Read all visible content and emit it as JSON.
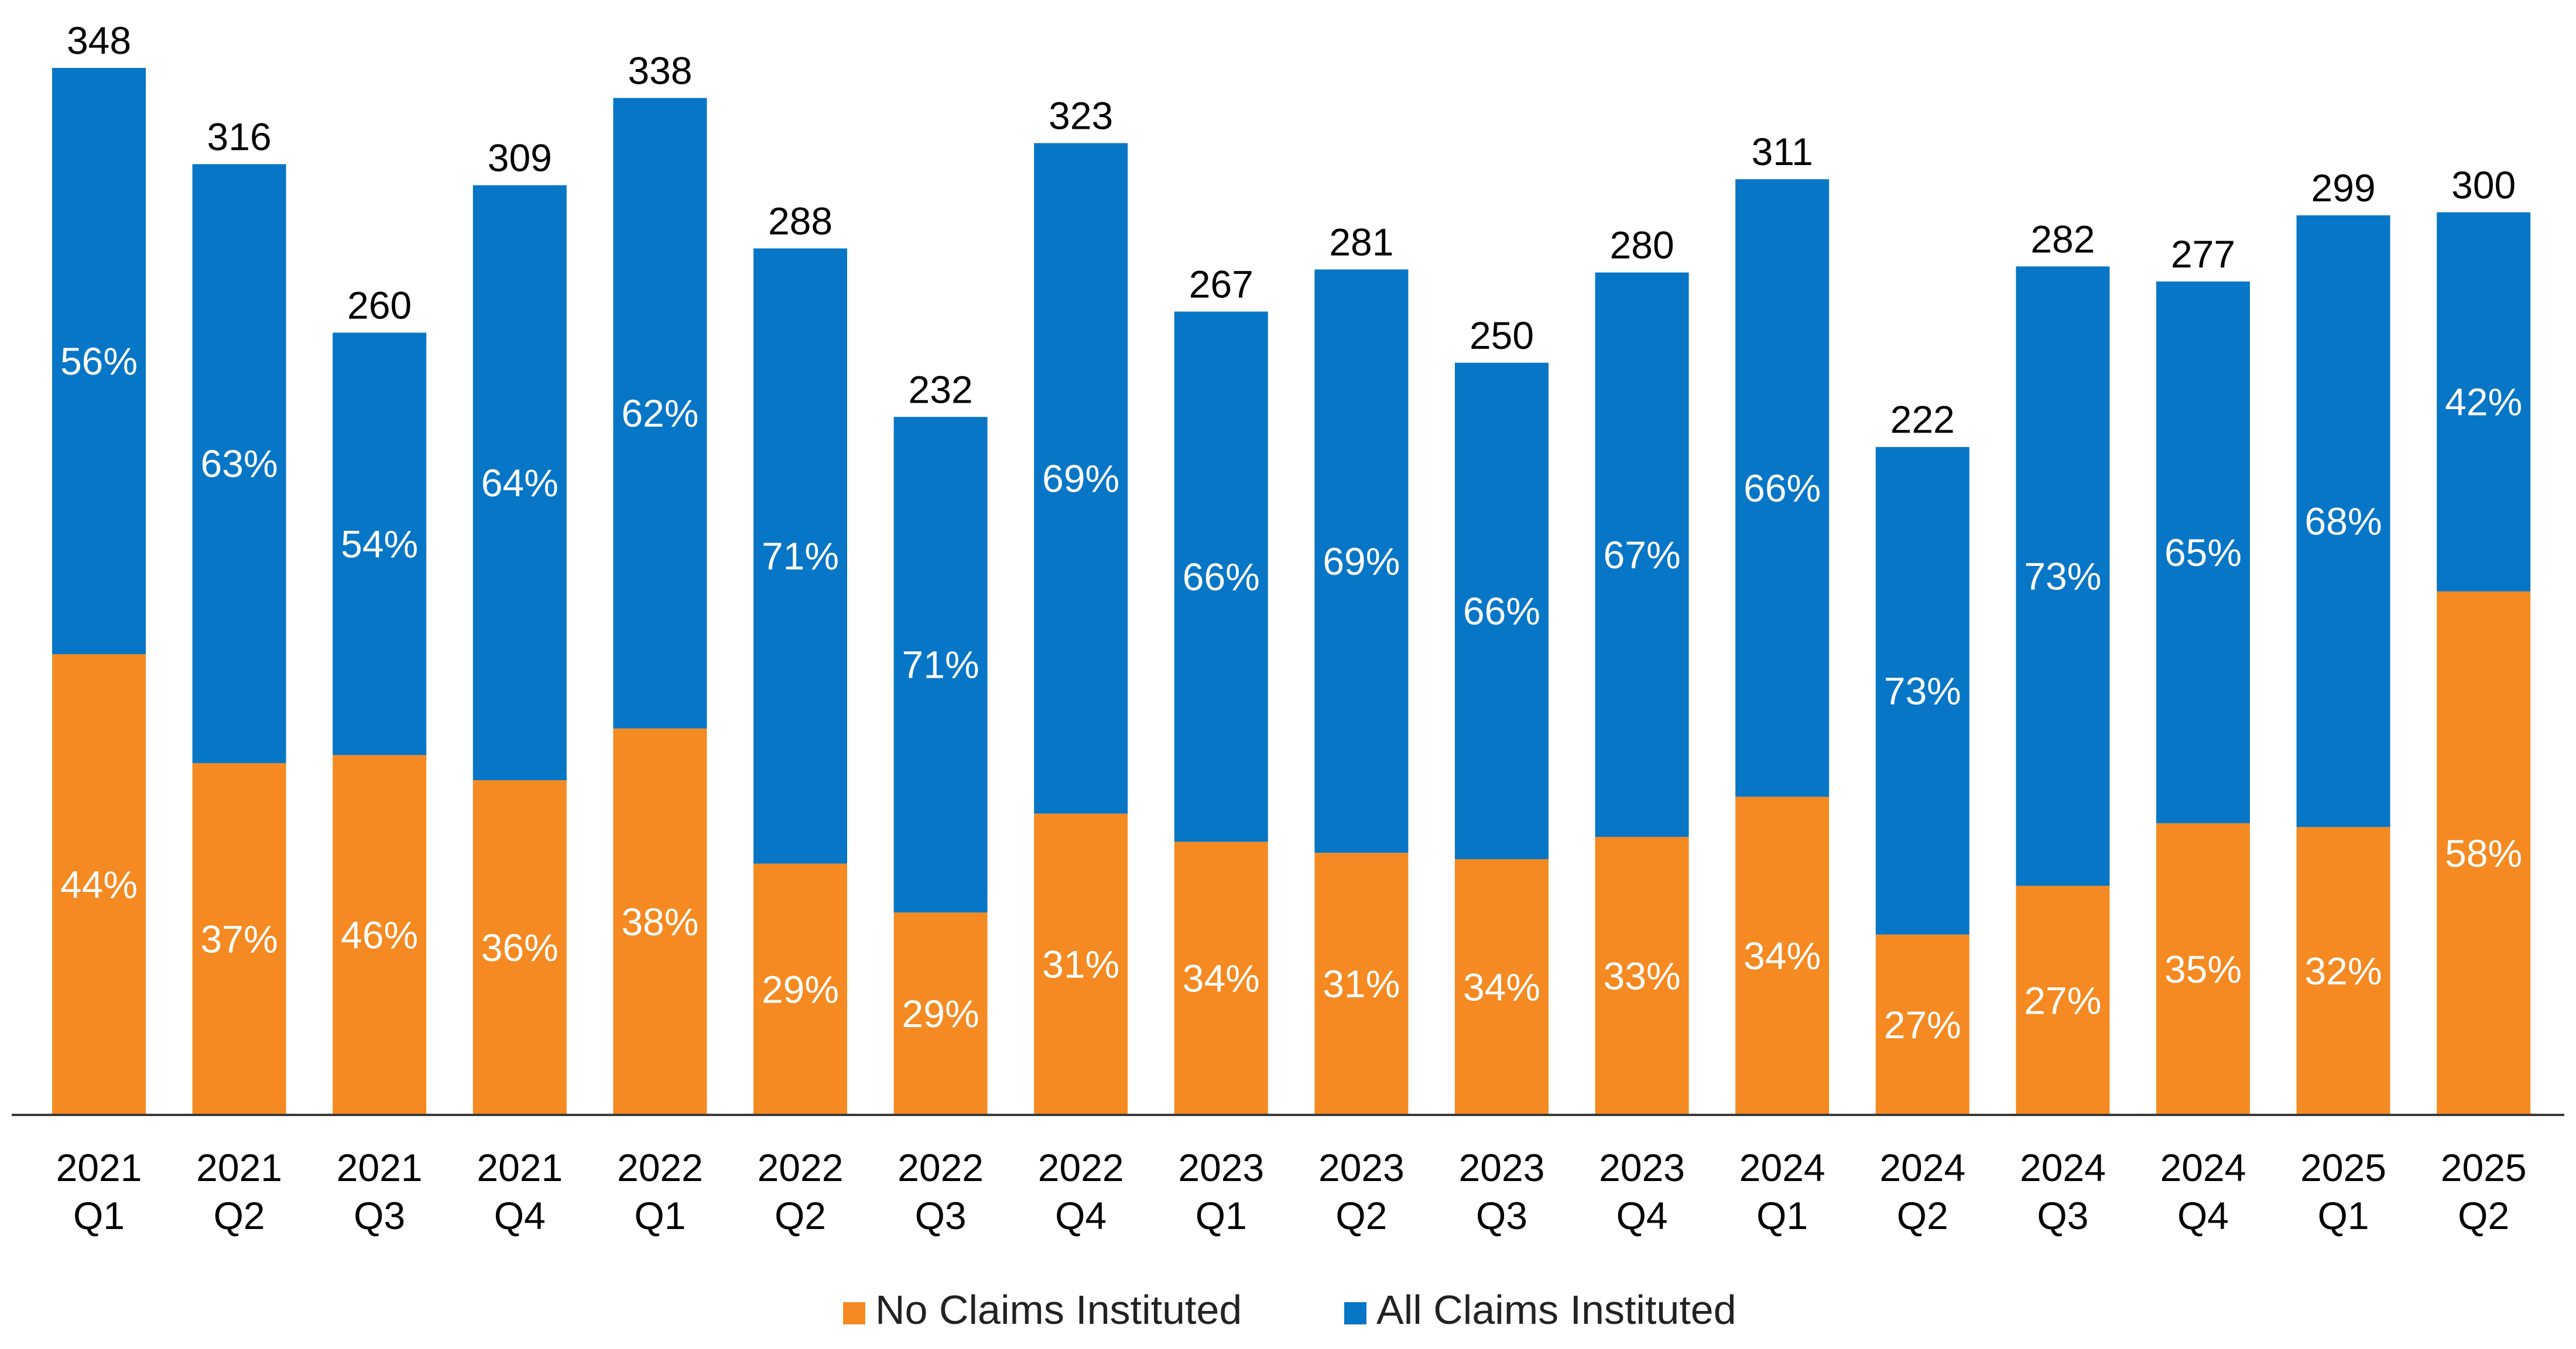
{
  "chart_data": {
    "type": "stacked-bar",
    "title": "",
    "xlabel": "",
    "ylabel": "",
    "ylim": [
      0,
      348
    ],
    "grid": false,
    "legend_position": "bottom-center",
    "categories": [
      [
        "2021",
        "Q1"
      ],
      [
        "2021",
        "Q2"
      ],
      [
        "2021",
        "Q3"
      ],
      [
        "2021",
        "Q4"
      ],
      [
        "2022",
        "Q1"
      ],
      [
        "2022",
        "Q2"
      ],
      [
        "2022",
        "Q3"
      ],
      [
        "2022",
        "Q4"
      ],
      [
        "2023",
        "Q1"
      ],
      [
        "2023",
        "Q2"
      ],
      [
        "2023",
        "Q3"
      ],
      [
        "2023",
        "Q4"
      ],
      [
        "2024",
        "Q1"
      ],
      [
        "2024",
        "Q2"
      ],
      [
        "2024",
        "Q3"
      ],
      [
        "2024",
        "Q4"
      ],
      [
        "2025",
        "Q1"
      ],
      [
        "2025",
        "Q2"
      ]
    ],
    "totals": [
      348,
      316,
      260,
      309,
      338,
      288,
      232,
      323,
      267,
      281,
      250,
      280,
      311,
      222,
      282,
      277,
      299,
      300
    ],
    "series": [
      {
        "name": "No Claims Instituted",
        "color": "#F48A21",
        "percent_labels": [
          "44%",
          "37%",
          "46%",
          "36%",
          "38%",
          "29%",
          "29%",
          "31%",
          "34%",
          "31%",
          "34%",
          "33%",
          "34%",
          "27%",
          "27%",
          "35%",
          "32%",
          "58%"
        ]
      },
      {
        "name": "All Claims Instituted",
        "color": "#0776C6",
        "percent_labels": [
          "56%",
          "63%",
          "54%",
          "64%",
          "62%",
          "71%",
          "71%",
          "69%",
          "66%",
          "69%",
          "66%",
          "67%",
          "66%",
          "73%",
          "73%",
          "65%",
          "68%",
          "42%"
        ]
      }
    ]
  }
}
